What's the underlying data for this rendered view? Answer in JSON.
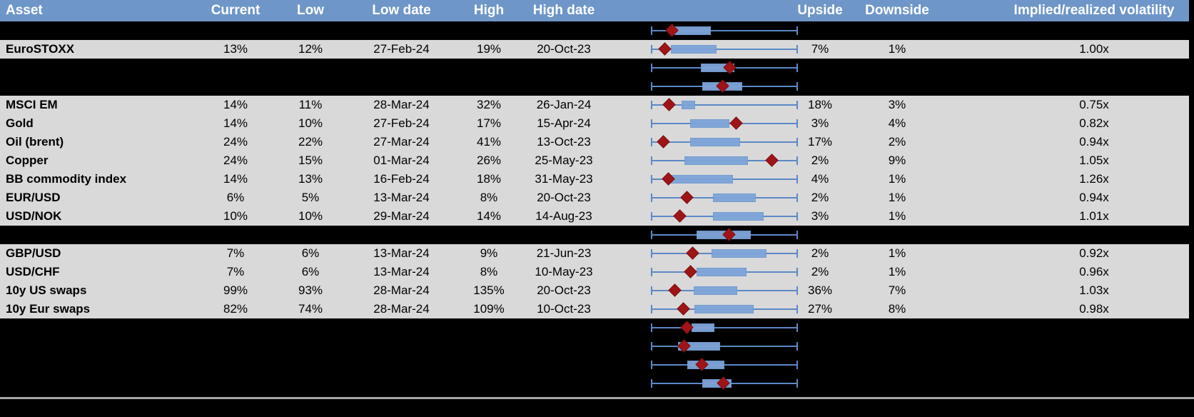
{
  "header": {
    "asset": "Asset",
    "current": "Current",
    "low": "Low",
    "low_date": "Low date",
    "high": "High",
    "high_date": "High date",
    "upside": "Upside",
    "downside": "Downside",
    "ivol": "Implied/realized volatility"
  },
  "colors": {
    "header_bg": "#6E96C8",
    "row_bg": "#D9D9D9",
    "black": "#000000",
    "box_fill": "#7EA4D8",
    "box_border": "#6F9BD0",
    "whisker": "#5B89C6",
    "diamond": "#9F1517",
    "separator": "#A6A6A6"
  },
  "chart_note": "Each row shows a horizontal box-whisker plot: whisker spans full range (0-1 normalized), blue box = range band, red diamond = current marker.",
  "rows": [
    {
      "type": "separator",
      "plot": {
        "box_start": 0.161,
        "box_end": 0.408,
        "diamond": 0.141
      }
    },
    {
      "type": "asset",
      "asset": "EuroSTOXX",
      "current": "13%",
      "low": "12%",
      "low_date": "27-Feb-24",
      "high": "19%",
      "high_date": "20-Oct-23",
      "upside": "7%",
      "downside": "1%",
      "ivol": "1.00x",
      "plot": {
        "box_start": 0.137,
        "box_end": 0.445,
        "diamond": 0.096
      }
    },
    {
      "type": "separator",
      "plot": {
        "box_start": 0.34,
        "box_end": 0.567,
        "diamond": 0.538
      }
    },
    {
      "type": "separator",
      "plot": {
        "box_start": 0.351,
        "box_end": 0.621,
        "diamond": 0.486
      }
    },
    {
      "type": "asset",
      "asset": "MSCI EM",
      "current": "14%",
      "low": "11%",
      "low_date": "28-Mar-24",
      "high": "32%",
      "high_date": "26-Jan-24",
      "upside": "18%",
      "downside": "3%",
      "ivol": "0.75x",
      "plot": {
        "box_start": 0.21,
        "box_end": 0.3,
        "diamond": 0.123
      }
    },
    {
      "type": "asset",
      "asset": "Gold",
      "current": "14%",
      "low": "10%",
      "low_date": "27-Feb-24",
      "high": "17%",
      "high_date": "15-Apr-24",
      "upside": "3%",
      "downside": "4%",
      "ivol": "0.82x",
      "plot": {
        "box_start": 0.267,
        "box_end": 0.535,
        "diamond": 0.579
      }
    },
    {
      "type": "asset",
      "asset": "Oil (brent)",
      "current": "24%",
      "low": "22%",
      "low_date": "27-Mar-24",
      "high": "41%",
      "high_date": "13-Oct-23",
      "upside": "17%",
      "downside": "2%",
      "ivol": "0.94x",
      "plot": {
        "box_start": 0.267,
        "box_end": 0.605,
        "diamond": 0.084
      }
    },
    {
      "type": "asset",
      "asset": "Copper",
      "current": "24%",
      "low": "15%",
      "low_date": "01-Mar-24",
      "high": "26%",
      "high_date": "25-May-23",
      "upside": "2%",
      "downside": "9%",
      "ivol": "1.05x",
      "plot": {
        "box_start": 0.226,
        "box_end": 0.662,
        "diamond": 0.824
      }
    },
    {
      "type": "asset",
      "asset": "BB commodity index",
      "current": "14%",
      "low": "13%",
      "low_date": "16-Feb-24",
      "high": "18%",
      "high_date": "31-May-23",
      "upside": "4%",
      "downside": "1%",
      "ivol": "1.26x",
      "plot": {
        "box_start": 0.133,
        "box_end": 0.559,
        "diamond": 0.12
      }
    },
    {
      "type": "asset",
      "asset": "EUR/USD",
      "current": "6%",
      "low": "5%",
      "low_date": "13-Mar-24",
      "high": "8%",
      "high_date": "20-Oct-23",
      "upside": "2%",
      "downside": "1%",
      "ivol": "0.94x",
      "plot": {
        "box_start": 0.421,
        "box_end": 0.714,
        "diamond": 0.247
      }
    },
    {
      "type": "asset",
      "asset": "USD/NOK",
      "current": "10%",
      "low": "10%",
      "low_date": "29-Mar-24",
      "high": "14%",
      "high_date": "14-Aug-23",
      "upside": "3%",
      "downside": "1%",
      "ivol": "1.01x",
      "plot": {
        "box_start": 0.421,
        "box_end": 0.767,
        "diamond": 0.194
      }
    },
    {
      "type": "separator",
      "plot": {
        "box_start": 0.312,
        "box_end": 0.681,
        "diamond": 0.532
      }
    },
    {
      "type": "asset",
      "asset": "GBP/USD",
      "current": "7%",
      "low": "6%",
      "low_date": "13-Mar-24",
      "high": "9%",
      "high_date": "21-Jun-23",
      "upside": "2%",
      "downside": "1%",
      "ivol": "0.92x",
      "plot": {
        "box_start": 0.413,
        "box_end": 0.787,
        "diamond": 0.286
      }
    },
    {
      "type": "asset",
      "asset": "USD/CHF",
      "current": "7%",
      "low": "6%",
      "low_date": "13-Mar-24",
      "high": "8%",
      "high_date": "10-May-23",
      "upside": "2%",
      "downside": "1%",
      "ivol": "0.96x",
      "plot": {
        "box_start": 0.312,
        "box_end": 0.652,
        "diamond": 0.267
      }
    },
    {
      "type": "asset",
      "asset": "10y US swaps",
      "current": "99%",
      "low": "93%",
      "low_date": "28-Mar-24",
      "high": "135%",
      "high_date": "20-Oct-23",
      "upside": "36%",
      "downside": "7%",
      "ivol": "1.03x",
      "plot": {
        "box_start": 0.291,
        "box_end": 0.587,
        "diamond": 0.164
      }
    },
    {
      "type": "asset",
      "asset": "10y Eur swaps",
      "current": "82%",
      "low": "74%",
      "low_date": "28-Mar-24",
      "high": "109%",
      "high_date": "10-Oct-23",
      "upside": "27%",
      "downside": "8%",
      "ivol": "0.98x",
      "plot": {
        "box_start": 0.294,
        "box_end": 0.7,
        "diamond": 0.221
      }
    },
    {
      "type": "separator",
      "plot": {
        "box_start": 0.275,
        "box_end": 0.434,
        "diamond": 0.245
      }
    },
    {
      "type": "separator",
      "plot": {
        "box_start": 0.185,
        "box_end": 0.47,
        "diamond": 0.226
      }
    },
    {
      "type": "separator",
      "plot": {
        "box_start": 0.247,
        "box_end": 0.499,
        "diamond": 0.348
      }
    },
    {
      "type": "separator",
      "plot": {
        "box_start": 0.348,
        "box_end": 0.548,
        "diamond": 0.494
      }
    }
  ]
}
